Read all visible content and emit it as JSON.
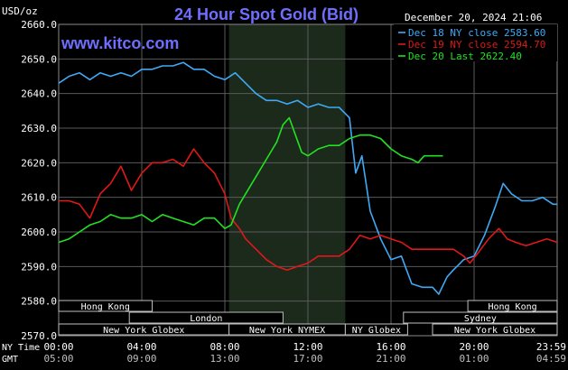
{
  "colors": {
    "background": "#000000",
    "plot_bg": "#000000",
    "grid": "#5a5a5a",
    "text": "#ffffff",
    "title": "#6f6fff",
    "brand": "#6f6fff",
    "shaded_region": "#1c2a1c",
    "dec18": "#3fa9f5",
    "dec19": "#e01818",
    "dec20": "#22e022",
    "session_label": "#ffffff"
  },
  "chart_data": {
    "type": "line",
    "title": "24 Hour Spot Gold (Bid)",
    "brand": "www.kitco.com",
    "timestamp": "December 20, 2024 21:06",
    "y_unit_label": "USD/oz",
    "ylim": [
      2570,
      2660
    ],
    "yticks": [
      2570,
      2580,
      2590,
      2600,
      2610,
      2620,
      2630,
      2640,
      2650,
      2660
    ],
    "ytick_labels": [
      "2570.0",
      "2580.0",
      "2590.0",
      "2600.0",
      "2610.0",
      "2620.0",
      "2630.0",
      "2640.0",
      "2650.0",
      "2660.0"
    ],
    "xlim": [
      0,
      24
    ],
    "xticks": [
      0,
      4,
      8,
      12,
      16,
      20,
      24
    ],
    "x_row_label_ny": "NY Time",
    "x_row_label_gmt": "GMT",
    "xtick_labels_ny": [
      "00:00",
      "04:00",
      "08:00",
      "12:00",
      "16:00",
      "20:00",
      "23:59"
    ],
    "xtick_labels_gmt": [
      "05:00",
      "09:00",
      "13:00",
      "17:00",
      "21:00",
      "01:00",
      "04:59"
    ],
    "shaded_hours": [
      8.2,
      13.8
    ],
    "grid": true,
    "legend_position": "top-right",
    "series": [
      {
        "name": "Dec 18 NY close 2583.60",
        "color_key": "dec18",
        "points": [
          [
            0,
            2643
          ],
          [
            0.5,
            2645
          ],
          [
            1,
            2646
          ],
          [
            1.5,
            2644
          ],
          [
            2,
            2646
          ],
          [
            2.5,
            2645
          ],
          [
            3,
            2646
          ],
          [
            3.5,
            2645
          ],
          [
            4,
            2647
          ],
          [
            4.5,
            2647
          ],
          [
            5,
            2648
          ],
          [
            5.5,
            2648
          ],
          [
            6,
            2649
          ],
          [
            6.5,
            2647
          ],
          [
            7,
            2647
          ],
          [
            7.5,
            2645
          ],
          [
            8,
            2644
          ],
          [
            8.5,
            2646
          ],
          [
            9,
            2643
          ],
          [
            9.5,
            2640
          ],
          [
            10,
            2638
          ],
          [
            10.5,
            2638
          ],
          [
            11,
            2637
          ],
          [
            11.5,
            2638
          ],
          [
            12,
            2636
          ],
          [
            12.5,
            2637
          ],
          [
            13,
            2636
          ],
          [
            13.5,
            2636
          ],
          [
            14,
            2633
          ],
          [
            14.3,
            2617
          ],
          [
            14.6,
            2622
          ],
          [
            15,
            2606
          ],
          [
            15.5,
            2598
          ],
          [
            16,
            2592
          ],
          [
            16.5,
            2593
          ],
          [
            17,
            2585
          ],
          [
            17.5,
            2584
          ],
          [
            18,
            2584
          ],
          [
            18.3,
            2582
          ],
          [
            18.7,
            2587
          ],
          [
            19,
            2589
          ],
          [
            19.5,
            2592
          ],
          [
            20,
            2593
          ],
          [
            20.5,
            2599
          ],
          [
            21,
            2607
          ],
          [
            21.4,
            2614
          ],
          [
            21.8,
            2611
          ],
          [
            22.3,
            2609
          ],
          [
            22.8,
            2609
          ],
          [
            23.3,
            2610
          ],
          [
            23.8,
            2608
          ],
          [
            24,
            2608
          ]
        ]
      },
      {
        "name": "Dec 19 NY close 2594.70",
        "color_key": "dec19",
        "points": [
          [
            0,
            2609
          ],
          [
            0.5,
            2609
          ],
          [
            1,
            2608
          ],
          [
            1.5,
            2604
          ],
          [
            2,
            2611
          ],
          [
            2.5,
            2614
          ],
          [
            3,
            2619
          ],
          [
            3.5,
            2612
          ],
          [
            4,
            2617
          ],
          [
            4.5,
            2620
          ],
          [
            5,
            2620
          ],
          [
            5.5,
            2621
          ],
          [
            6,
            2619
          ],
          [
            6.5,
            2624
          ],
          [
            7,
            2620
          ],
          [
            7.5,
            2617
          ],
          [
            8,
            2611
          ],
          [
            8.3,
            2604
          ],
          [
            8.7,
            2601
          ],
          [
            9,
            2598
          ],
          [
            9.5,
            2595
          ],
          [
            10,
            2592
          ],
          [
            10.5,
            2590
          ],
          [
            11,
            2589
          ],
          [
            11.5,
            2590
          ],
          [
            12,
            2591
          ],
          [
            12.5,
            2593
          ],
          [
            13,
            2593
          ],
          [
            13.5,
            2593
          ],
          [
            14,
            2595
          ],
          [
            14.5,
            2599
          ],
          [
            15,
            2598
          ],
          [
            15.5,
            2599
          ],
          [
            16,
            2598
          ],
          [
            16.5,
            2597
          ],
          [
            17,
            2595
          ],
          [
            17.5,
            2595
          ],
          [
            18,
            2595
          ],
          [
            18.5,
            2595
          ],
          [
            19,
            2595
          ],
          [
            19.5,
            2593
          ],
          [
            19.8,
            2591
          ],
          [
            20.2,
            2594
          ],
          [
            20.7,
            2598
          ],
          [
            21.2,
            2601
          ],
          [
            21.6,
            2598
          ],
          [
            22,
            2597
          ],
          [
            22.5,
            2596
          ],
          [
            23,
            2597
          ],
          [
            23.5,
            2598
          ],
          [
            24,
            2597
          ]
        ]
      },
      {
        "name": "Dec 20 Last 2622.40",
        "color_key": "dec20",
        "points": [
          [
            0,
            2597
          ],
          [
            0.5,
            2598
          ],
          [
            1,
            2600
          ],
          [
            1.5,
            2602
          ],
          [
            2,
            2603
          ],
          [
            2.5,
            2605
          ],
          [
            3,
            2604
          ],
          [
            3.5,
            2604
          ],
          [
            4,
            2605
          ],
          [
            4.5,
            2603
          ],
          [
            5,
            2605
          ],
          [
            5.5,
            2604
          ],
          [
            6,
            2603
          ],
          [
            6.5,
            2602
          ],
          [
            7,
            2604
          ],
          [
            7.5,
            2604
          ],
          [
            8,
            2601
          ],
          [
            8.3,
            2602
          ],
          [
            8.7,
            2608
          ],
          [
            9,
            2611
          ],
          [
            9.5,
            2616
          ],
          [
            10,
            2621
          ],
          [
            10.5,
            2626
          ],
          [
            10.8,
            2631
          ],
          [
            11.1,
            2633
          ],
          [
            11.4,
            2628
          ],
          [
            11.7,
            2623
          ],
          [
            12,
            2622
          ],
          [
            12.5,
            2624
          ],
          [
            13,
            2625
          ],
          [
            13.5,
            2625
          ],
          [
            14,
            2627
          ],
          [
            14.5,
            2628
          ],
          [
            15,
            2628
          ],
          [
            15.5,
            2627
          ],
          [
            16,
            2624
          ],
          [
            16.5,
            2622
          ],
          [
            17,
            2621
          ],
          [
            17.3,
            2620
          ],
          [
            17.6,
            2622
          ],
          [
            18,
            2622
          ],
          [
            18.5,
            2622
          ]
        ]
      }
    ],
    "session_bars": [
      {
        "label": "Hong Kong",
        "start": 0.0,
        "end": 4.5,
        "row": 0
      },
      {
        "label": "London",
        "start": 3.4,
        "end": 10.8,
        "row": 1
      },
      {
        "label": "New York Globex",
        "start": 0.0,
        "end": 8.2,
        "row": 2
      },
      {
        "label": "New York NYMEX",
        "start": 8.2,
        "end": 13.8,
        "row": 2
      },
      {
        "label": "NY Globex",
        "start": 13.8,
        "end": 16.8,
        "row": 2
      },
      {
        "label": "Hong Kong",
        "start": 19.7,
        "end": 24.0,
        "row": 0
      },
      {
        "label": "Sydney",
        "start": 16.6,
        "end": 24.0,
        "row": 1
      },
      {
        "label": "New York Globex",
        "start": 18.0,
        "end": 24.0,
        "row": 2
      }
    ]
  }
}
